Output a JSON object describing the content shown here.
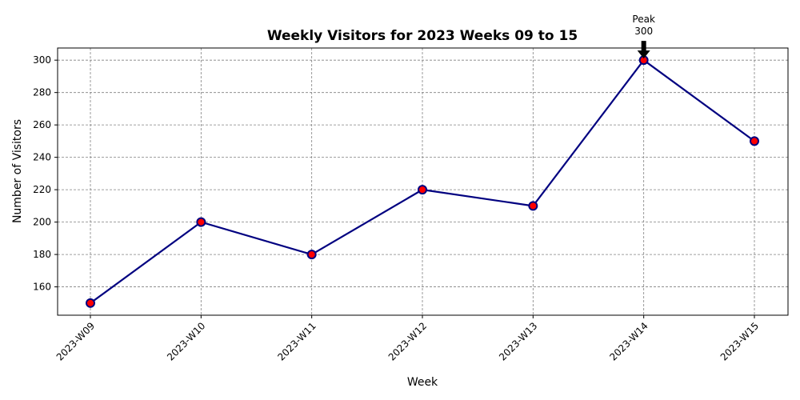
{
  "chart_data": {
    "type": "line",
    "title": "Weekly Visitors for 2023 Weeks 09 to 15",
    "xlabel": "Week",
    "ylabel": "Number of Visitors",
    "categories": [
      "2023-W09",
      "2023-W10",
      "2023-W11",
      "2023-W12",
      "2023-W13",
      "2023-W14",
      "2023-W15"
    ],
    "values": [
      150,
      200,
      180,
      220,
      210,
      300,
      250
    ],
    "ylim": [
      142.5,
      307.5
    ],
    "yticks": [
      160,
      180,
      200,
      220,
      240,
      260,
      280,
      300
    ],
    "grid": true,
    "line_color": "#000080",
    "marker_color": "#ff0000",
    "grid_color": "#808080",
    "annotation": {
      "category": "2023-W14",
      "line1": "Peak",
      "line2": "300"
    }
  }
}
